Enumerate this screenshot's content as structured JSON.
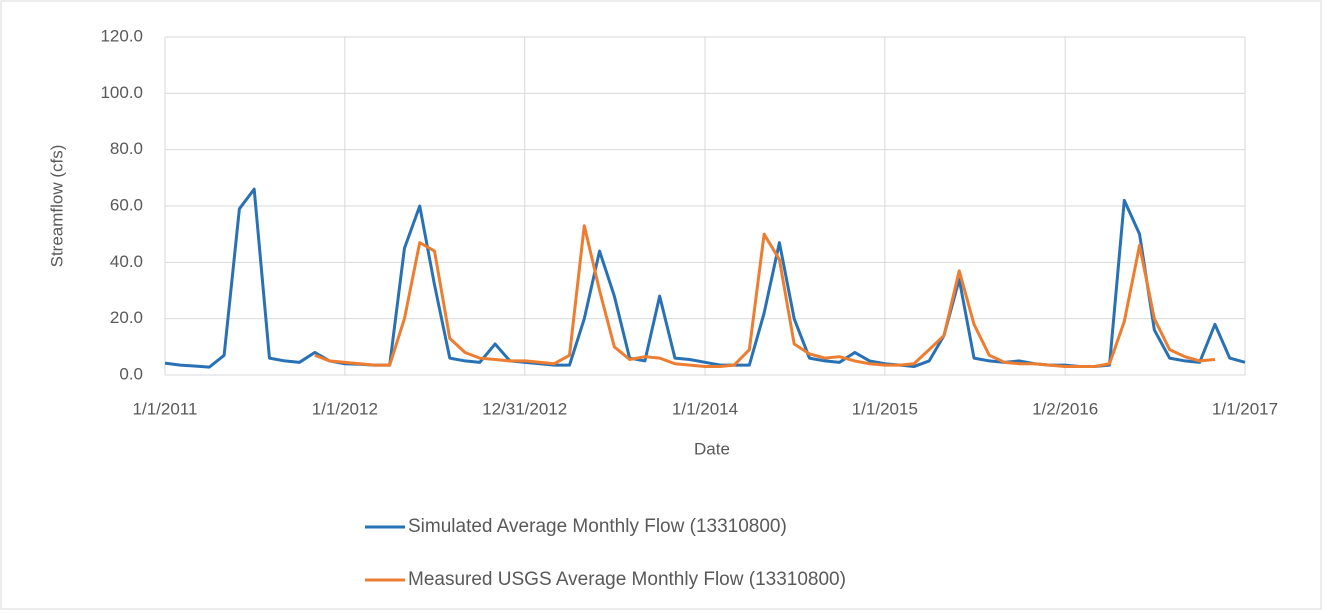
{
  "chart_data": {
    "type": "line",
    "y_label": "Streamflow (cfs)",
    "x_label": "Date",
    "x": [
      "1/1/2011",
      "2/1/2011",
      "3/1/2011",
      "4/1/2011",
      "5/1/2011",
      "6/1/2011",
      "7/1/2011",
      "8/1/2011",
      "9/1/2011",
      "10/1/2011",
      "11/1/2011",
      "12/1/2011",
      "1/1/2012",
      "2/1/2012",
      "3/1/2012",
      "4/1/2012",
      "5/1/2012",
      "6/1/2012",
      "7/1/2012",
      "8/1/2012",
      "9/1/2012",
      "10/1/2012",
      "11/1/2012",
      "12/1/2012",
      "1/1/2013",
      "2/1/2013",
      "3/1/2013",
      "4/1/2013",
      "5/1/2013",
      "6/1/2013",
      "7/1/2013",
      "8/1/2013",
      "9/1/2013",
      "10/1/2013",
      "11/1/2013",
      "12/1/2013",
      "1/1/2014",
      "2/1/2014",
      "3/1/2014",
      "4/1/2014",
      "5/1/2014",
      "6/1/2014",
      "7/1/2014",
      "8/1/2014",
      "9/1/2014",
      "10/1/2014",
      "11/1/2014",
      "12/1/2014",
      "1/1/2015",
      "2/1/2015",
      "3/1/2015",
      "4/1/2015",
      "5/1/2015",
      "6/1/2015",
      "7/1/2015",
      "8/1/2015",
      "9/1/2015",
      "10/1/2015",
      "11/1/2015",
      "12/1/2015",
      "1/1/2016",
      "2/1/2016",
      "3/1/2016",
      "4/1/2016",
      "5/1/2016",
      "6/1/2016",
      "7/1/2016",
      "8/1/2016",
      "9/1/2016",
      "10/1/2016",
      "11/1/2016",
      "12/1/2016",
      "1/1/2017"
    ],
    "series": [
      {
        "name": "Simulated Average Monthly Flow (13310800)",
        "color": "#2971b5",
        "values": [
          4.2,
          3.5,
          3.2,
          2.8,
          7,
          59,
          66,
          6,
          5,
          4.5,
          8,
          5,
          4,
          3.8,
          3.5,
          3.5,
          45,
          60,
          32,
          6,
          5,
          4.5,
          11,
          5,
          4.5,
          4,
          3.5,
          3.5,
          20,
          44,
          28,
          6,
          5,
          28,
          6,
          5.5,
          4.5,
          3.5,
          3.5,
          3.5,
          22,
          47,
          20,
          6,
          5,
          4.5,
          8,
          5,
          4,
          3.5,
          3,
          5,
          14,
          34,
          6,
          5,
          4.5,
          5,
          4,
          3.5,
          3.5,
          3,
          3,
          3.5,
          62,
          50,
          16,
          6,
          5,
          4.5,
          18,
          6,
          4.5
        ]
      },
      {
        "name": "Measured USGS Average Monthly Flow (13310800)",
        "color": "#ed7d31",
        "values": [
          null,
          null,
          null,
          null,
          null,
          null,
          null,
          null,
          null,
          null,
          7,
          5,
          4.5,
          4,
          3.5,
          3.5,
          20,
          47,
          44,
          13,
          8,
          6,
          5.5,
          5,
          5,
          4.5,
          4,
          7,
          53,
          30,
          10,
          5.5,
          6.5,
          6,
          4,
          3.5,
          3,
          3,
          3.5,
          9,
          50,
          41,
          11,
          7.5,
          6,
          6.5,
          5,
          4,
          3.5,
          3.5,
          4,
          9,
          14,
          37,
          18,
          7,
          4.5,
          4,
          4,
          3.5,
          3,
          3,
          3,
          4,
          19,
          46,
          20,
          9,
          6.5,
          5,
          5.5,
          null,
          null
        ]
      }
    ],
    "xlim": [
      "1/1/2011",
      "1/1/2017"
    ],
    "xticks": [
      "1/1/2011",
      "1/1/2012",
      "12/31/2012",
      "1/1/2014",
      "1/1/2015",
      "1/2/2016",
      "1/1/2017"
    ],
    "ylim": [
      0,
      120
    ],
    "yticks": [
      {
        "value": 0,
        "label": "0.0"
      },
      {
        "value": 20,
        "label": "20.0"
      },
      {
        "value": 40,
        "label": "40.0"
      },
      {
        "value": 60,
        "label": "60.0"
      },
      {
        "value": 80,
        "label": "80.0"
      },
      {
        "value": 100,
        "label": "100.0"
      },
      {
        "value": 120,
        "label": "120.0"
      }
    ],
    "grid": true,
    "legend": "bottom"
  }
}
